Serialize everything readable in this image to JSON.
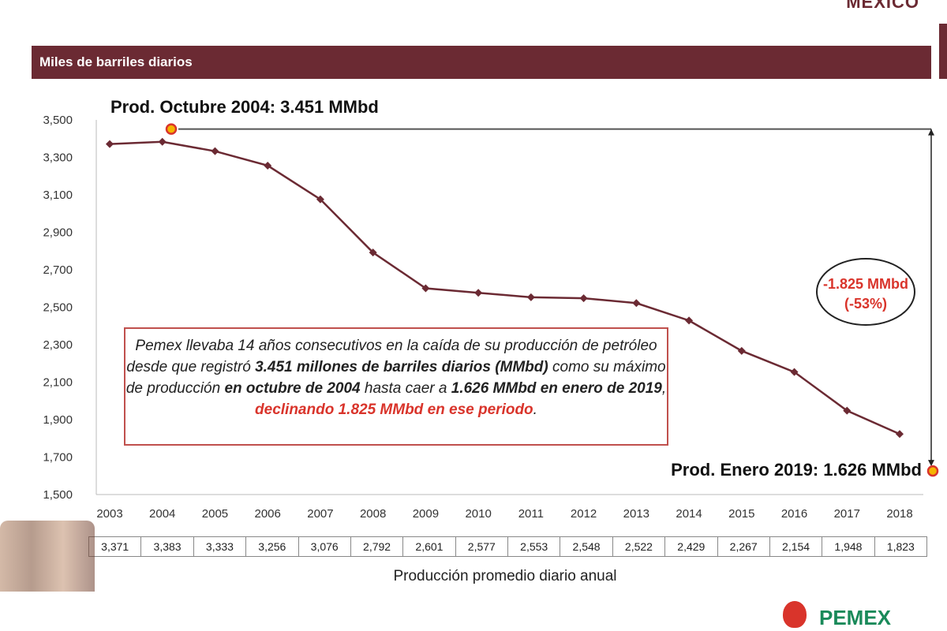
{
  "header": {
    "title": "Miles de barriles diarios",
    "logo_text": "MÉXICO"
  },
  "chart_data": {
    "type": "line",
    "title": "Miles de barriles diarios",
    "xlabel": "Producción promedio diario anual",
    "categories": [
      "2003",
      "2004",
      "2005",
      "2006",
      "2007",
      "2008",
      "2009",
      "2010",
      "2011",
      "2012",
      "2013",
      "2014",
      "2015",
      "2016",
      "2017",
      "2018"
    ],
    "values": [
      3371,
      3383,
      3333,
      3256,
      3076,
      2792,
      2601,
      2577,
      2553,
      2548,
      2522,
      2429,
      2267,
      2154,
      1948,
      1823
    ],
    "value_labels": [
      "3,371",
      "3,383",
      "3,333",
      "3,256",
      "3,076",
      "2,792",
      "2,601",
      "2,577",
      "2,553",
      "2,548",
      "2,522",
      "2,429",
      "2,267",
      "2,154",
      "1,948",
      "1,823"
    ],
    "ylim": [
      1500,
      3500
    ],
    "yticks": [
      "1,500",
      "1,700",
      "1,900",
      "2,100",
      "2,300",
      "2,500",
      "2,700",
      "2,900",
      "3,100",
      "3,300",
      "3,500"
    ],
    "grid": false,
    "line_color": "#6b2a33",
    "annotations": {
      "peak_label": "Prod. Octubre 2004: 3.451 MMbd",
      "peak_value": 3451,
      "end_label": "Prod. Enero 2019: 1.626 MMbd",
      "end_value": 1626,
      "decline_value": "-1.825 MMbd",
      "decline_pct": "(-53%)"
    }
  },
  "note": {
    "p1": "Pemex llevaba 14 años consecutivos en la caída de su producción de petróleo desde que registró ",
    "b1": "3.451 millones de barriles diarios (MMbd)",
    "p2": " como su máximo de producción ",
    "b2": "en octubre de 2004",
    "p3": " hasta caer a ",
    "b3": "1.626 MMbd en enero de 2019",
    "p4": ", ",
    "red": "declinando 1.825 MMbd en ese periodo",
    "p5": "."
  },
  "footer": {
    "brand": "PEMEX"
  },
  "colors": {
    "header": "#6b2a33",
    "accent_red": "#d9342b",
    "box_border": "#c0504d",
    "brand_green": "#1a8a5a"
  }
}
